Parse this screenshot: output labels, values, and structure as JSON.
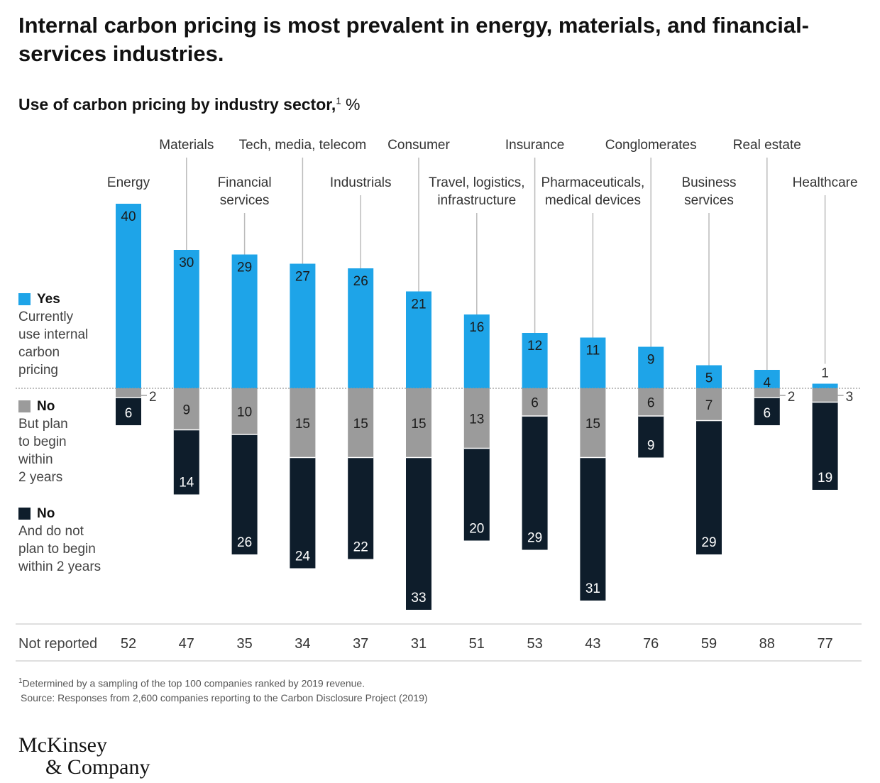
{
  "title": "Internal carbon pricing is most prevalent in energy, materials, and financial-services industries.",
  "subtitle": "Use of carbon pricing by industry sector,",
  "subtitle_footnote": "1",
  "subtitle_unit": "%",
  "legend": {
    "yes": {
      "head": "Yes",
      "lines": [
        "Currently",
        "use internal",
        "carbon",
        "pricing"
      ]
    },
    "no_plan": {
      "head": "No",
      "lines": [
        "But plan",
        "to begin",
        "within",
        "2 years"
      ]
    },
    "no_not": {
      "head": "No",
      "lines": [
        "And do not",
        "plan to begin",
        "within 2 years"
      ]
    }
  },
  "colors": {
    "yes": "#1ea4e8",
    "no_plan": "#9b9b9b",
    "no_not": "#0e1d2b"
  },
  "not_reported_label": "Not reported",
  "chart_data": {
    "type": "bar",
    "categories": [
      [
        "Energy"
      ],
      [
        "Materials"
      ],
      [
        "Financial",
        "services"
      ],
      [
        "Tech, media, telecom"
      ],
      [
        "Industrials"
      ],
      [
        "Consumer"
      ],
      [
        "Travel, logistics,",
        "infrastructure"
      ],
      [
        "Insurance"
      ],
      [
        "Pharmaceuticals,",
        "medical devices"
      ],
      [
        "Conglomerates"
      ],
      [
        "Business",
        "services"
      ],
      [
        "Real estate"
      ],
      [
        "Healthcare"
      ]
    ],
    "series": [
      {
        "name": "Yes",
        "values": [
          40,
          30,
          29,
          27,
          26,
          21,
          16,
          12,
          11,
          9,
          5,
          4,
          1
        ]
      },
      {
        "name": "No",
        "values": [
          2,
          9,
          10,
          15,
          15,
          15,
          13,
          6,
          15,
          6,
          7,
          2,
          3
        ]
      },
      {
        "name": "No",
        "values": [
          6,
          14,
          26,
          24,
          22,
          33,
          20,
          29,
          31,
          9,
          29,
          6,
          19
        ]
      }
    ],
    "not_reported": [
      52,
      47,
      35,
      34,
      37,
      31,
      51,
      53,
      43,
      76,
      59,
      88,
      77
    ]
  },
  "footnote": "Determined by a sampling of the top 100 companies ranked by 2019 revenue.",
  "footnote_mark": "1",
  "source": "Source: Responses from 2,600 companies reporting to the Carbon Disclosure Project (2019)",
  "logo": {
    "line1": "McKinsey",
    "line2": "& Company"
  }
}
